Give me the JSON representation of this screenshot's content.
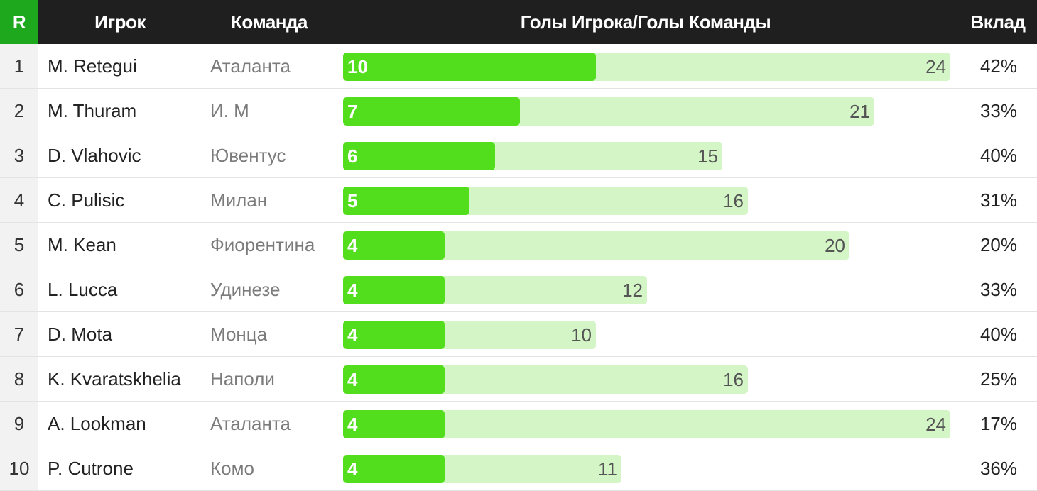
{
  "header": {
    "rank": "R",
    "player": "Игрок",
    "team": "Команда",
    "ratio": "Голы Игрока/Голы Команды",
    "share": "Вклад"
  },
  "colors": {
    "header_bg": "#1f1f1f",
    "rank_header_bg": "#1ea81e",
    "player_goals_bar": "#52de1c",
    "team_goals_bar": "#d4f5c6"
  },
  "chart_data": {
    "type": "bar",
    "xlim": [
      0,
      24
    ],
    "rows": [
      {
        "rank": "1",
        "player": "M. Retegui",
        "team": "Аталанта",
        "player_goals": 10,
        "team_goals": 24,
        "share": "42%"
      },
      {
        "rank": "2",
        "player": "M. Thuram",
        "team": "И. М",
        "player_goals": 7,
        "team_goals": 21,
        "share": "33%"
      },
      {
        "rank": "3",
        "player": "D. Vlahovic",
        "team": "Ювентус",
        "player_goals": 6,
        "team_goals": 15,
        "share": "40%"
      },
      {
        "rank": "4",
        "player": "C. Pulisic",
        "team": "Милан",
        "player_goals": 5,
        "team_goals": 16,
        "share": "31%"
      },
      {
        "rank": "5",
        "player": "M. Kean",
        "team": "Фиорентина",
        "player_goals": 4,
        "team_goals": 20,
        "share": "20%"
      },
      {
        "rank": "6",
        "player": "L. Lucca",
        "team": "Удинезе",
        "player_goals": 4,
        "team_goals": 12,
        "share": "33%"
      },
      {
        "rank": "7",
        "player": "D. Mota",
        "team": "Монца",
        "player_goals": 4,
        "team_goals": 10,
        "share": "40%"
      },
      {
        "rank": "8",
        "player": "K. Kvaratskhelia",
        "team": "Наполи",
        "player_goals": 4,
        "team_goals": 16,
        "share": "25%"
      },
      {
        "rank": "9",
        "player": "A. Lookman",
        "team": "Аталанта",
        "player_goals": 4,
        "team_goals": 24,
        "share": "17%"
      },
      {
        "rank": "10",
        "player": "P. Cutrone",
        "team": "Комо",
        "player_goals": 4,
        "team_goals": 11,
        "share": "36%"
      }
    ]
  }
}
